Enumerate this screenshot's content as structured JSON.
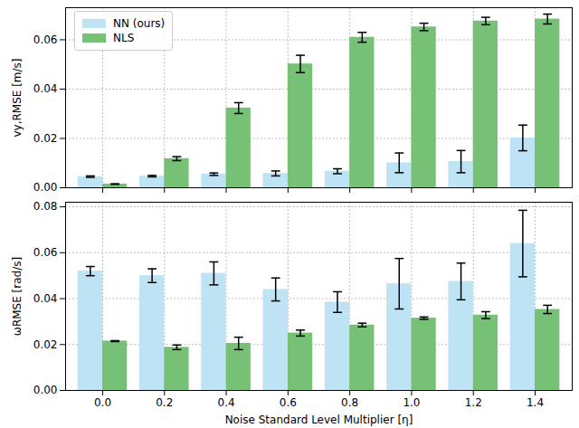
{
  "chart_data": [
    {
      "type": "bar",
      "y_label": "vy,RMSE [m/s]",
      "categories": [
        "0.0",
        "0.2",
        "0.4",
        "0.6",
        "0.8",
        "1.0",
        "1.2",
        "1.4"
      ],
      "series": [
        {
          "name": "NN (ours)",
          "color": "#bde3f5",
          "values": [
            0.0045,
            0.0047,
            0.0055,
            0.0058,
            0.0067,
            0.0101,
            0.0106,
            0.0202
          ],
          "errors": [
            0.0003,
            0.0003,
            0.0005,
            0.001,
            0.001,
            0.004,
            0.0045,
            0.0052
          ]
        },
        {
          "name": "NLS",
          "color": "#77c177",
          "values": [
            0.0015,
            0.0118,
            0.0323,
            0.0502,
            0.061,
            0.0652,
            0.0676,
            0.0684
          ],
          "errors": [
            0.0001,
            0.0008,
            0.0022,
            0.0035,
            0.002,
            0.0015,
            0.0015,
            0.002
          ]
        }
      ],
      "ylim": [
        0,
        0.073
      ],
      "yticks": [
        {
          "value": 0,
          "label": "0.00"
        },
        {
          "value": 0.02,
          "label": "0.02"
        },
        {
          "value": 0.04,
          "label": "0.04"
        },
        {
          "value": 0.06,
          "label": "0.06"
        }
      ],
      "grid": true,
      "legend": "upper left",
      "tick_labels": "y"
    },
    {
      "type": "bar",
      "x_label": "Noise Standard Level Multiplier [η]",
      "y_label": "ωRMSE [rad/s]",
      "categories": [
        "0.0",
        "0.2",
        "0.4",
        "0.6",
        "0.8",
        "1.0",
        "1.2",
        "1.4"
      ],
      "series": [
        {
          "name": "NN (ours)",
          "color": "#bde3f5",
          "values": [
            0.052,
            0.05,
            0.051,
            0.044,
            0.0385,
            0.0465,
            0.0475,
            0.064
          ],
          "errors": [
            0.002,
            0.003,
            0.005,
            0.005,
            0.0045,
            0.011,
            0.008,
            0.0145
          ]
        },
        {
          "name": "NLS",
          "color": "#77c177",
          "values": [
            0.0215,
            0.0188,
            0.0205,
            0.025,
            0.0285,
            0.0315,
            0.0328,
            0.0353
          ],
          "errors": [
            0.0002,
            0.001,
            0.0027,
            0.0013,
            0.0008,
            0.0005,
            0.0015,
            0.0018
          ]
        }
      ],
      "ylim": [
        0,
        0.082
      ],
      "yticks": [
        {
          "value": 0,
          "label": "0.00"
        },
        {
          "value": 0.02,
          "label": "0.02"
        },
        {
          "value": 0.04,
          "label": "0.04"
        },
        {
          "value": 0.06,
          "label": "0.06"
        },
        {
          "value": 0.08,
          "label": "0.08"
        }
      ],
      "grid": true
    }
  ]
}
